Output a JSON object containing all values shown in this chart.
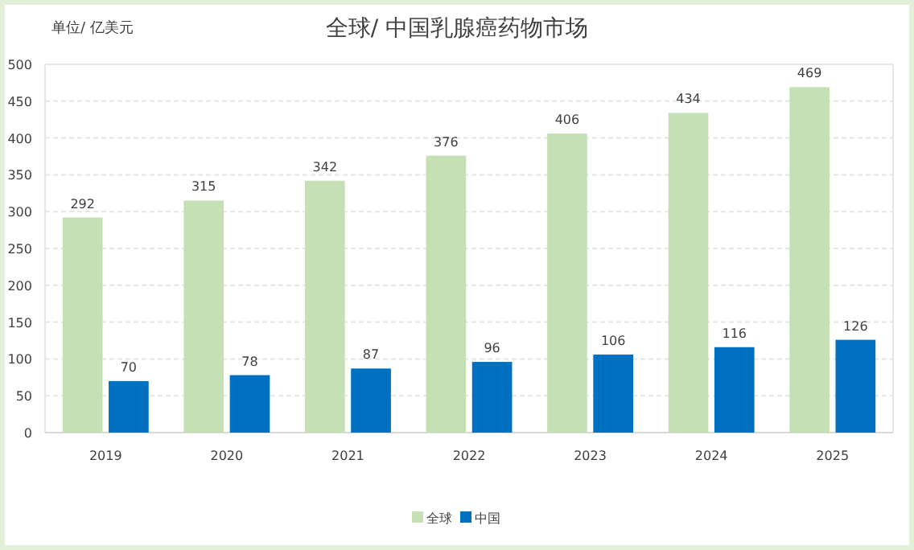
{
  "chart_data": {
    "type": "bar",
    "title": "全球/ 中国乳腺癌药物市场",
    "annotations": [
      "单位/ 亿美元"
    ],
    "categories": [
      "2019",
      "2020",
      "2021",
      "2022",
      "2023",
      "2024",
      "2025"
    ],
    "series": [
      {
        "name": "全球",
        "color": "#c5e0b4",
        "values": [
          292,
          315,
          342,
          376,
          406,
          434,
          469
        ]
      },
      {
        "name": "中国",
        "color": "#0070c0",
        "values": [
          70,
          78,
          87,
          96,
          106,
          116,
          126
        ]
      }
    ],
    "ylim": [
      0,
      500
    ],
    "yticks": [
      0,
      50,
      100,
      150,
      200,
      250,
      300,
      350,
      400,
      450,
      500
    ],
    "grid": "y",
    "legend": "bottom",
    "data_labels": true
  }
}
